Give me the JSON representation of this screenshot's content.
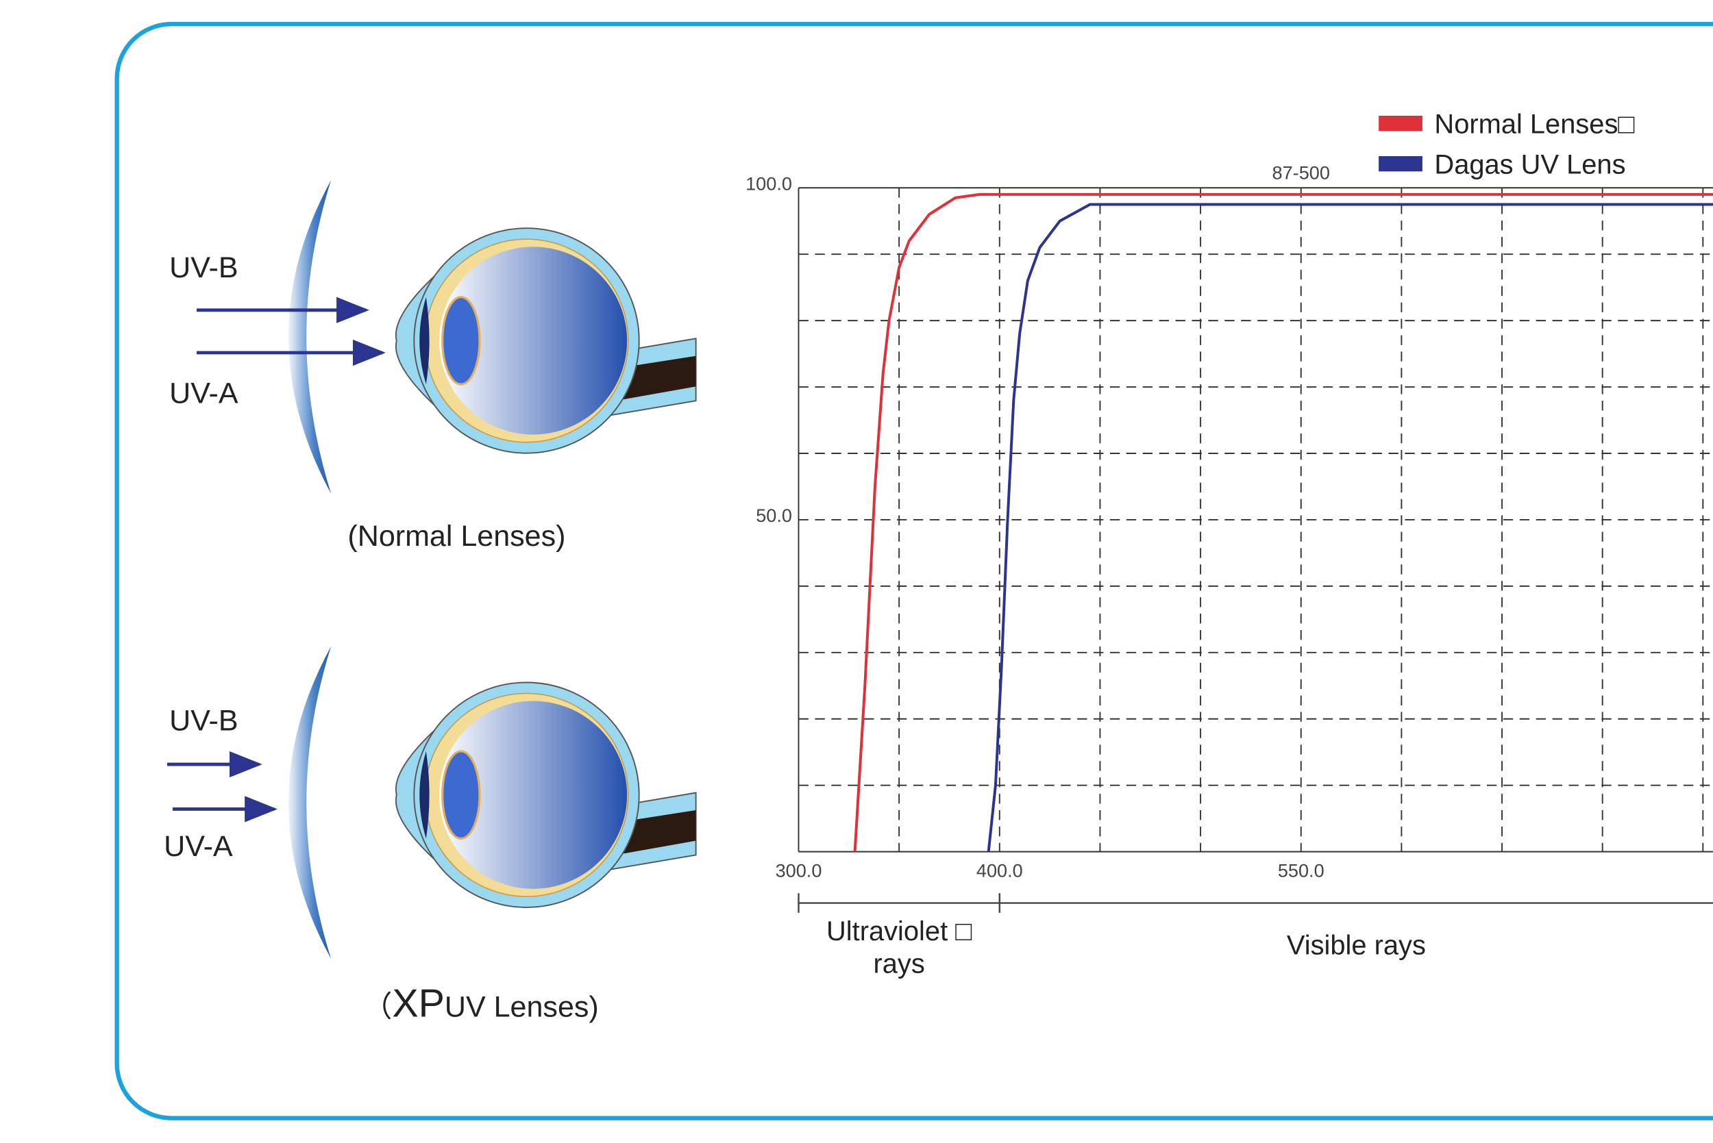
{
  "diagram": {
    "top": {
      "uvb": "UV-B",
      "uva": "UV-A",
      "caption": "(Normal Lenses)"
    },
    "bottom": {
      "uvb": "UV-B",
      "uva": "UV-A",
      "caption": [
        "（",
        "XP",
        "UV Lenses)"
      ]
    }
  },
  "chart_data": {
    "type": "line",
    "annotation": "87-500",
    "legend": "top-right",
    "grid": true,
    "xlim": [
      300,
      755
    ],
    "ylim": [
      0,
      100
    ],
    "xticks": [
      {
        "value": 300,
        "label": "300.0"
      },
      {
        "value": 350,
        "label": null
      },
      {
        "value": 400,
        "label": "400.0"
      },
      {
        "value": 450,
        "label": null
      },
      {
        "value": 500,
        "label": null
      },
      {
        "value": 550,
        "label": "550.0"
      },
      {
        "value": 600,
        "label": null
      },
      {
        "value": 650,
        "label": null
      },
      {
        "value": 700,
        "label": null
      },
      {
        "value": 750,
        "label": null
      }
    ],
    "yticks": [
      {
        "value": 0,
        "label": null
      },
      {
        "value": 10,
        "label": null
      },
      {
        "value": 20,
        "label": null
      },
      {
        "value": 30,
        "label": null
      },
      {
        "value": 40,
        "label": null
      },
      {
        "value": 50,
        "label": "50.0"
      },
      {
        "value": 60,
        "label": null
      },
      {
        "value": 70,
        "label": null
      },
      {
        "value": 80,
        "label": null
      },
      {
        "value": 90,
        "label": null
      },
      {
        "value": 100,
        "label": "100.0"
      }
    ],
    "series": [
      {
        "name": "Normal Lenses□",
        "color": "#e0303a",
        "x": [
          328,
          333,
          338,
          342,
          345,
          350,
          355,
          365,
          378,
          390,
          755
        ],
        "values": [
          0,
          25,
          55,
          72,
          80,
          88,
          92,
          96,
          98.5,
          99,
          99
        ]
      },
      {
        "name": "Dagas UV Lens",
        "color": "#2b3590",
        "x": [
          394.5,
          398,
          401,
          404,
          407,
          410,
          414,
          420,
          430,
          445,
          460,
          755
        ],
        "values": [
          0,
          10,
          28,
          50,
          68,
          78,
          86,
          91,
          95,
          97.5,
          97.5,
          97.5
        ]
      }
    ],
    "regions": [
      {
        "label": [
          "Ultraviolet □",
          "rays"
        ],
        "from": 300,
        "to": 400
      },
      {
        "label": [
          "Visible rays"
        ],
        "from": 400
      }
    ]
  }
}
